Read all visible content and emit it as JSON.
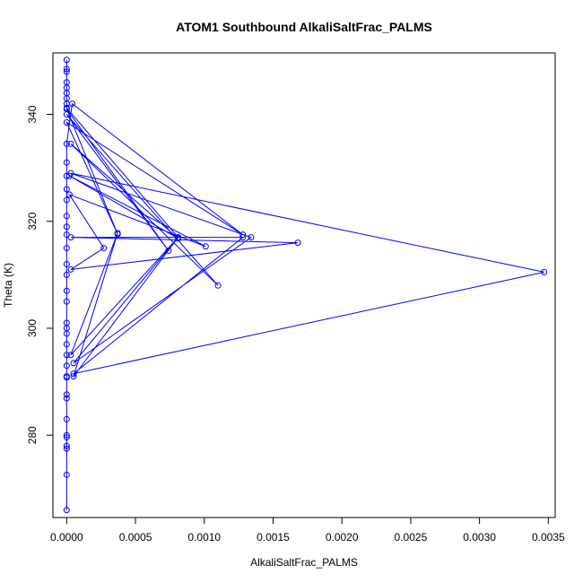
{
  "chart_data": {
    "type": "line",
    "title": "ATOM1 Southbound AlkaliSaltFrac_PALMS",
    "xlabel": "AlkaliSaltFrac_PALMS",
    "ylabel": "Theta (K)",
    "xlim": [
      -0.0001,
      0.00355
    ],
    "ylim": [
      264.6,
      351.5
    ],
    "xticks": [
      0.0,
      0.0005,
      0.001,
      0.0015,
      0.002,
      0.0025,
      0.003,
      0.0035
    ],
    "xtick_labels": [
      "0.0000",
      "0.0005",
      "0.0010",
      "0.0015",
      "0.0020",
      "0.0025",
      "0.0030",
      "0.0035"
    ],
    "yticks": [
      280,
      300,
      320,
      340
    ],
    "ytick_labels": [
      "280",
      "300",
      "320",
      "340"
    ],
    "grid": false,
    "series_color": "#0000ff",
    "series": [
      {
        "values": [
          [
            0,
            266.0
          ],
          [
            0,
            272.6
          ],
          [
            0,
            277.5
          ],
          [
            0,
            278.0
          ],
          [
            0,
            279.6
          ],
          [
            0,
            280.0
          ],
          [
            0,
            283.0
          ],
          [
            0,
            286.9
          ],
          [
            0,
            287.6
          ],
          [
            0,
            290.8
          ],
          [
            0,
            291.0
          ],
          [
            0,
            293.0
          ],
          [
            0,
            295.0
          ],
          [
            0,
            297.0
          ],
          [
            0,
            299.0
          ],
          [
            0,
            300.0
          ],
          [
            0,
            301.0
          ],
          [
            0,
            305.0
          ],
          [
            0,
            307.0
          ],
          [
            0,
            310.0
          ],
          [
            0,
            312.0
          ],
          [
            0,
            315.0
          ],
          [
            0,
            317.5
          ],
          [
            0,
            319.0
          ],
          [
            0,
            321.0
          ],
          [
            0,
            324.0
          ],
          [
            0,
            326.0
          ],
          [
            0,
            328.5
          ],
          [
            0,
            331.0
          ],
          [
            0,
            334.5
          ],
          [
            4e-05,
            342.0
          ],
          [
            0.00128,
            317.5
          ],
          [
            0,
            338.5
          ],
          [
            0.00037,
            317.6
          ],
          [
            0,
            341.0
          ],
          [
            0.00074,
            314.5
          ],
          [
            0,
            340.0
          ],
          [
            0.0011,
            308.0
          ],
          [
            3e-05,
            334.5
          ],
          [
            0.00081,
            316.8
          ],
          [
            2e-05,
            328.5
          ],
          [
            0.00101,
            315.3
          ],
          [
            2e-05,
            325.0
          ],
          [
            0.00027,
            315.0
          ],
          [
            3e-05,
            311.0
          ],
          [
            0.00168,
            316.0
          ],
          [
            3e-05,
            317.0
          ],
          [
            0.00128,
            317.0
          ],
          [
            5e-05,
            291.5
          ],
          [
            0.00347,
            310.5
          ],
          [
            3e-05,
            329.0
          ],
          [
            0.00134,
            317.0
          ],
          [
            5e-05,
            293.5
          ],
          [
            0.00081,
            317.0
          ],
          [
            3e-05,
            295.0
          ],
          [
            0.00037,
            317.8
          ],
          [
            5e-05,
            291.0
          ],
          [
            0.00081,
            317.0
          ],
          [
            0,
            341.2
          ],
          [
            0,
            342.0
          ],
          [
            0,
            343.0
          ],
          [
            0,
            344.0
          ],
          [
            0,
            345.0
          ],
          [
            0,
            346.0
          ],
          [
            0,
            348.0
          ],
          [
            0,
            348.5
          ],
          [
            0,
            350.2
          ]
        ]
      }
    ]
  }
}
